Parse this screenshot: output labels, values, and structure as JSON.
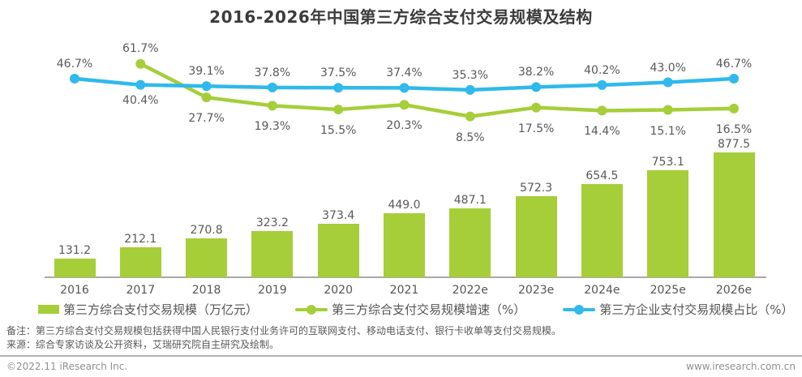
{
  "title": "2016-2026年中国第三方综合支付交易规模及结构",
  "colors": {
    "green": "#A5CE39",
    "blue": "#2FB9EC",
    "label_gray": "#595959"
  },
  "chart_data": {
    "type": "combo-bar-line",
    "categories": [
      "2016",
      "2017",
      "2018",
      "2019",
      "2020",
      "2021",
      "2022e",
      "2023e",
      "2024e",
      "2025e",
      "2026e"
    ],
    "series": [
      {
        "name": "第三方综合支付交易规模（万亿元）",
        "type": "bar",
        "color": "#A5CE39",
        "unit": "万亿元",
        "values": [
          131.2,
          212.1,
          270.8,
          323.2,
          373.4,
          449.0,
          487.1,
          572.3,
          654.5,
          753.1,
          877.5
        ]
      },
      {
        "name": "第三方综合支付交易规模增速（%）",
        "type": "line",
        "color": "#A5CE39",
        "unit": "%",
        "values": [
          null,
          61.7,
          27.7,
          19.3,
          15.5,
          20.3,
          8.5,
          17.5,
          14.4,
          15.1,
          16.5
        ]
      },
      {
        "name": "第三方企业支付交易规模占比（%）",
        "type": "line",
        "color": "#2FB9EC",
        "unit": "%",
        "values": [
          46.7,
          40.4,
          39.1,
          37.8,
          37.5,
          37.4,
          35.3,
          38.2,
          40.2,
          43.0,
          46.7
        ]
      }
    ],
    "title": "2016-2026年中国第三方综合支付交易规模及结构",
    "xlabel": "",
    "ylabel": "",
    "grid": false,
    "legend_position": "bottom",
    "data_labels": true
  },
  "legend": {
    "items": [
      {
        "label": "第三方综合支付交易规模（万亿元）",
        "marker": "green-square"
      },
      {
        "label": "第三方综合支付交易规模增速（%）",
        "marker": "green-line-dot"
      },
      {
        "label": "第三方企业支付交易规模占比（%）",
        "marker": "blue-line-dot"
      }
    ]
  },
  "notes": {
    "line1": "备注：第三方综合支付交易规模包括获得中国人民银行支付业务许可的互联网支付、移动电话支付、银行卡收单等支付交易规模。",
    "line2": "来源：综合专家访谈及公开资料，艾瑞研究院自主研究及绘制。"
  },
  "footer": {
    "copyright": "©2022.11 iResearch Inc.",
    "website": "www.iresearch.com.cn"
  }
}
